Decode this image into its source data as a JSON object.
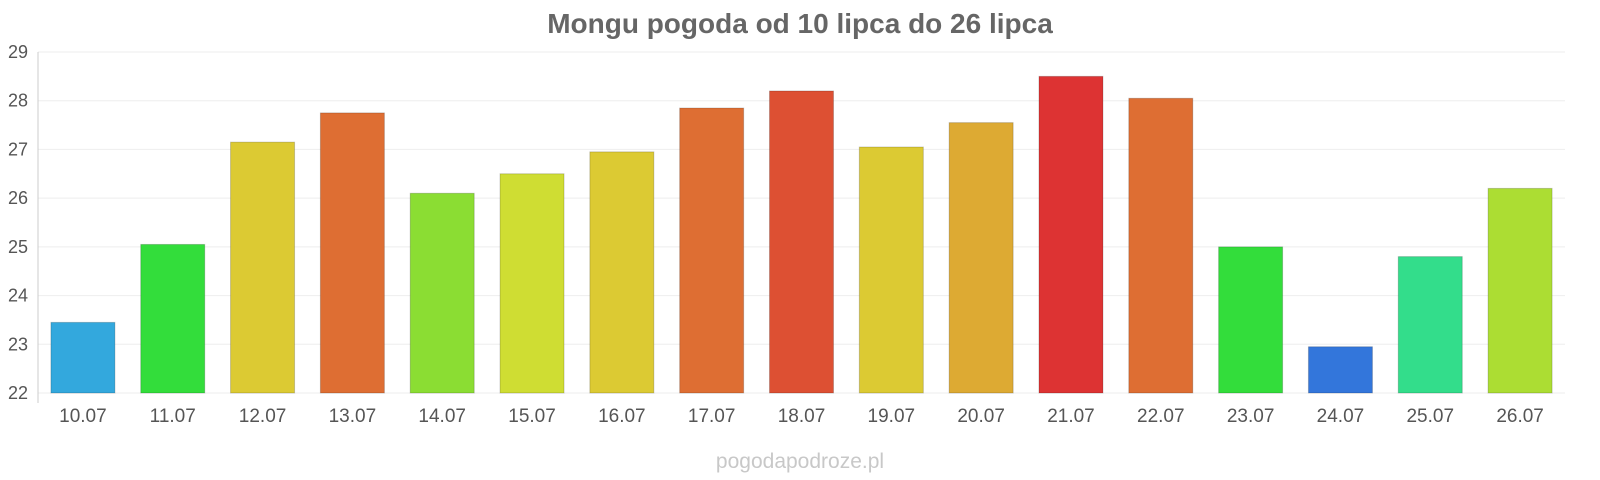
{
  "chart_data": {
    "type": "bar",
    "title": "Mongu pogoda od 10 lipca do 26 lipca",
    "xlabel": "",
    "ylabel": "",
    "ylim": [
      22,
      29
    ],
    "yticks": [
      "22",
      "23",
      "24",
      "25",
      "26",
      "27",
      "28",
      "29"
    ],
    "grid": true,
    "categories": [
      "10.07",
      "11.07",
      "12.07",
      "13.07",
      "14.07",
      "15.07",
      "16.07",
      "17.07",
      "18.07",
      "19.07",
      "20.07",
      "21.07",
      "22.07",
      "23.07",
      "24.07",
      "25.07",
      "26.07"
    ],
    "values": [
      23.45,
      25.05,
      27.15,
      27.75,
      26.1,
      26.5,
      26.95,
      27.85,
      28.2,
      27.05,
      27.55,
      28.5,
      28.05,
      25.0,
      22.95,
      24.8,
      26.2
    ],
    "colors": [
      "#33a8dd",
      "#33dd3b",
      "#dcca33",
      "#de6e33",
      "#8bdd33",
      "#cfdd33",
      "#dcca33",
      "#de6e33",
      "#dd5033",
      "#dcca33",
      "#ddaa33",
      "#dd3333",
      "#de6e33",
      "#33dd3b",
      "#3376db",
      "#33dd8b",
      "#acdd33"
    ]
  },
  "watermark": "pogodapodroze.pl"
}
